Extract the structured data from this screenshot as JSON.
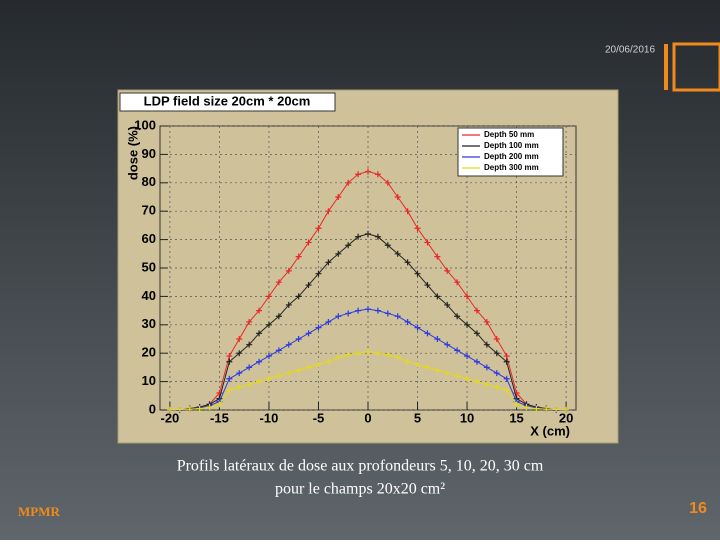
{
  "slide": {
    "date": "20/06/2016",
    "caption_line1": "Profils latéraux de dose aux profondeurs 5, 10, 20,  30 cm",
    "caption_line2": "pour le champs 20x20 cm²",
    "logo": "MPMR",
    "page_number": "16"
  },
  "chart_data": {
    "type": "line",
    "title": "LDP field size 20cm * 20cm",
    "x_label": "X (cm)",
    "y_label": "dose (%)",
    "x": [
      -20,
      -19,
      -18,
      -17,
      -16,
      -15,
      -14,
      -13,
      -12,
      -11,
      -10,
      -9,
      -8,
      -7,
      -6,
      -5,
      -4,
      -3,
      -2,
      -1,
      0,
      1,
      2,
      3,
      4,
      5,
      6,
      7,
      8,
      9,
      10,
      11,
      12,
      13,
      14,
      15,
      16,
      17,
      18,
      19,
      20
    ],
    "series": [
      {
        "name": "Depth 50 mm",
        "color": "#e8272a",
        "values": [
          0,
          0,
          0.5,
          1,
          2,
          6,
          19,
          25,
          31,
          35,
          40,
          45,
          49,
          54,
          59,
          64,
          70,
          75,
          80,
          83,
          84,
          83,
          80,
          75,
          70,
          64,
          59,
          54,
          49,
          45,
          40,
          35,
          31,
          25,
          19,
          6,
          2,
          1,
          0.5,
          0,
          0
        ]
      },
      {
        "name": "Depth 100 mm",
        "color": "#222222",
        "values": [
          0,
          0,
          0.5,
          1,
          2,
          4,
          17,
          20,
          23,
          27,
          30,
          33,
          37,
          40,
          44,
          48,
          52,
          55,
          58,
          61,
          62,
          61,
          58,
          55,
          52,
          48,
          44,
          40,
          37,
          33,
          30,
          27,
          23,
          20,
          17,
          4,
          2,
          1,
          0.5,
          0,
          0
        ]
      },
      {
        "name": "Depth 200 mm",
        "color": "#2a3be0",
        "values": [
          0,
          0,
          0.3,
          0.7,
          1.5,
          3,
          11,
          13,
          15,
          17,
          19,
          21,
          23,
          25,
          27,
          29,
          31,
          33,
          34,
          35,
          35.5,
          35,
          34,
          33,
          31,
          29,
          27,
          25,
          23,
          21,
          19,
          17,
          15,
          13,
          11,
          3,
          1.5,
          0.7,
          0.3,
          0,
          0
        ]
      },
      {
        "name": "Depth 300 mm",
        "color": "#e6d81c",
        "values": [
          0.1,
          0.2,
          0.3,
          0.5,
          1,
          2,
          7,
          8,
          9,
          10,
          11,
          12,
          13,
          14,
          15,
          16,
          17,
          18.5,
          19.5,
          20,
          20.5,
          20,
          19.5,
          18.5,
          17,
          16,
          15,
          14,
          13,
          12,
          11,
          10,
          9,
          8,
          7,
          2,
          1,
          0.5,
          0.3,
          0.2,
          0.1
        ]
      }
    ],
    "xlim": [
      -21,
      21
    ],
    "xticks": [
      -20,
      -15,
      -10,
      -5,
      0,
      5,
      10,
      15,
      20
    ],
    "ylim": [
      0,
      100
    ],
    "yticks": [
      0,
      10,
      20,
      30,
      40,
      50,
      60,
      70,
      80,
      90,
      100
    ],
    "grid": true
  }
}
